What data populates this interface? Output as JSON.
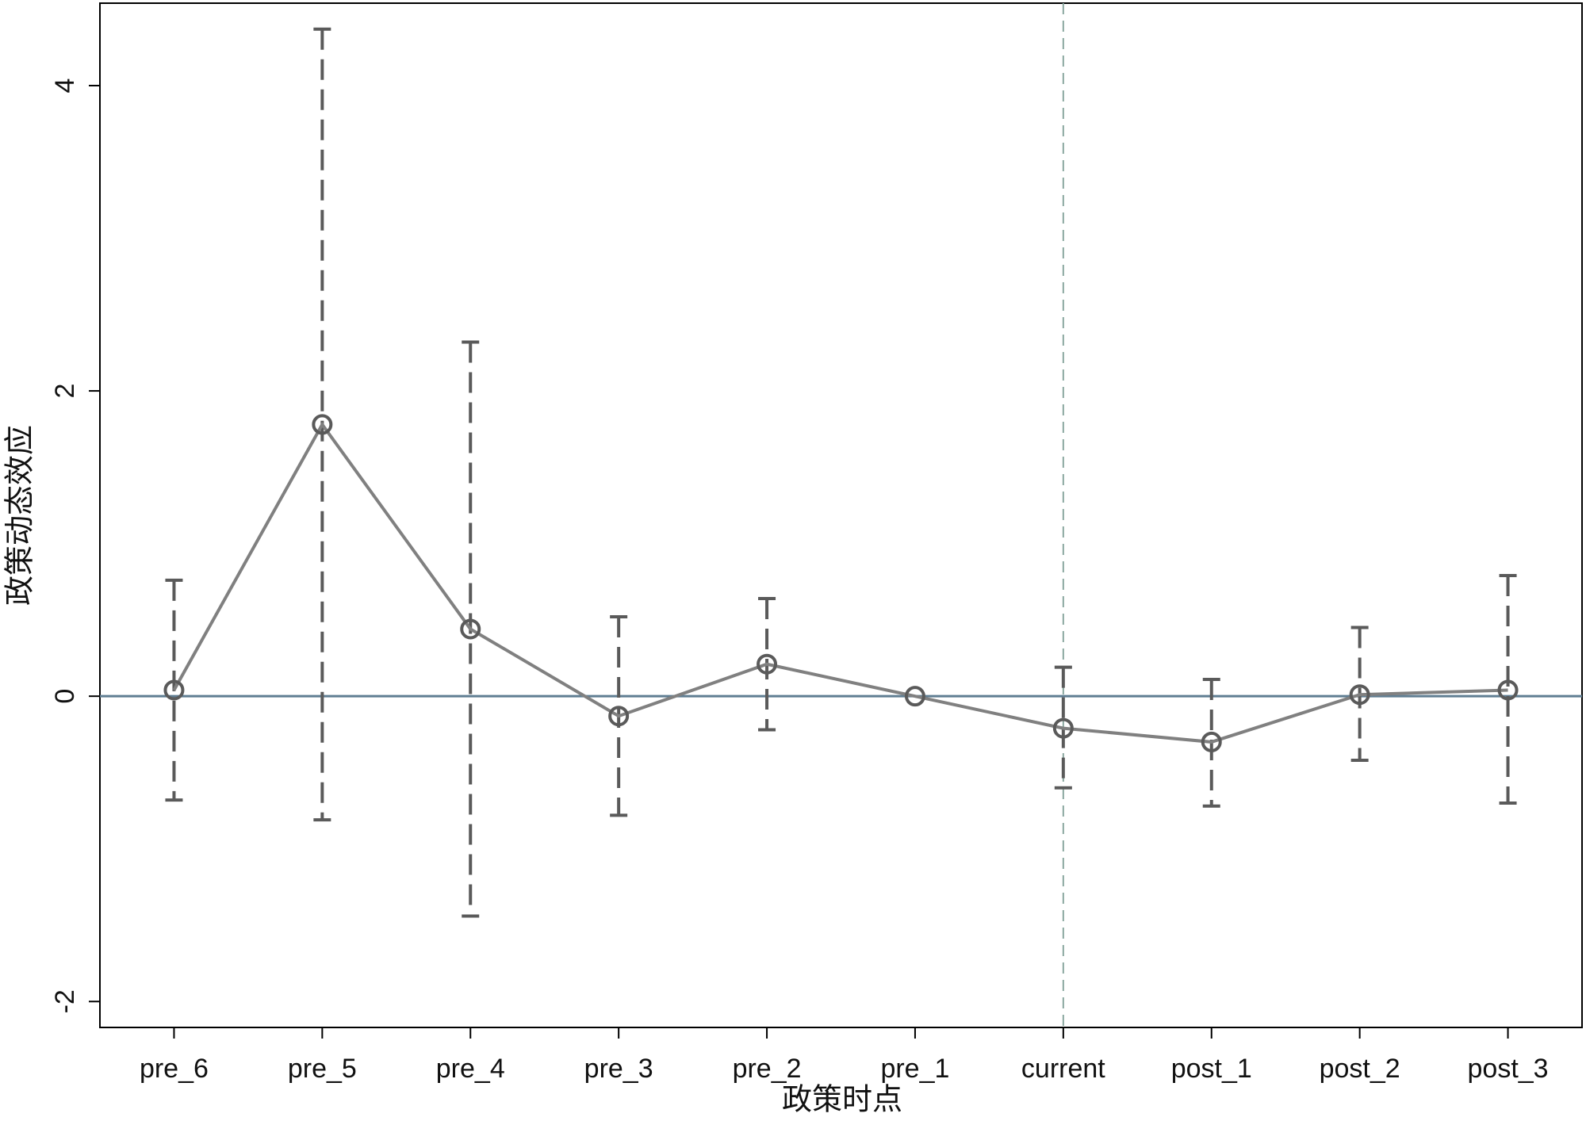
{
  "chart_data": {
    "type": "line",
    "x_label": "政策时点",
    "y_label": "政策动态效应",
    "categories": [
      "pre_6",
      "pre_5",
      "pre_4",
      "pre_3",
      "pre_2",
      "pre_1",
      "current",
      "post_1",
      "post_2",
      "post_3"
    ],
    "values": [
      0.04,
      1.78,
      0.44,
      -0.13,
      0.21,
      0,
      -0.21,
      -0.3,
      0.01,
      0.04
    ],
    "lower": [
      -0.68,
      -0.81,
      -1.44,
      -0.78,
      -0.22,
      null,
      -0.6,
      -0.72,
      -0.42,
      -0.7
    ],
    "upper": [
      0.76,
      4.37,
      2.32,
      0.52,
      0.64,
      null,
      0.19,
      0.11,
      0.45,
      0.79
    ],
    "line_color": "#808080",
    "marker_color": "#5a5a5a",
    "errorbar_color": "#5a5a5a",
    "yline": 0,
    "yline_color": "#5f7d92",
    "xline": "current",
    "xline_color": "#8aa8a0",
    "ylim": [
      -2.17,
      4.54
    ],
    "yticks": [
      -2,
      0,
      2,
      4
    ],
    "grid": false
  }
}
